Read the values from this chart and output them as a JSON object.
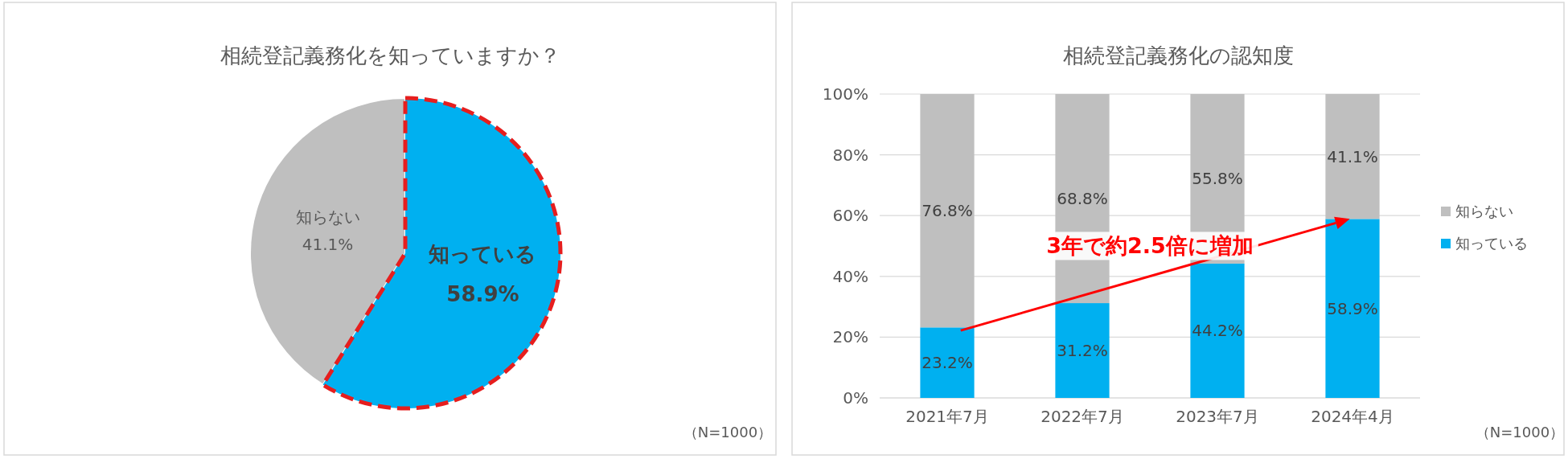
{
  "chart_data": [
    {
      "type": "pie",
      "title": "相続登記義務化を知っていますか？",
      "categories": [
        "知らない",
        "知っている"
      ],
      "values": [
        41.1,
        58.9
      ],
      "colors": [
        "#bfbfbf",
        "#00b0f0"
      ],
      "value_labels": [
        "41.1%",
        "58.9%"
      ],
      "legend": false,
      "annotations": [
        "（N=1000）"
      ]
    },
    {
      "type": "bar",
      "title": "相続登記義務化の認知度",
      "categories": [
        "2021年7月",
        "2022年7月",
        "2023年7月",
        "2024年4月"
      ],
      "stacked": true,
      "series": [
        {
          "name": "知っている",
          "color": "#00b0f0",
          "values": [
            23.2,
            31.2,
            44.2,
            58.9
          ],
          "value_labels": [
            "23.2%",
            "31.2%",
            "44.2%",
            "58.9%"
          ]
        },
        {
          "name": "知らない",
          "color": "#bfbfbf",
          "values": [
            76.8,
            68.8,
            55.8,
            41.1
          ],
          "value_labels": [
            "76.8%",
            "68.8%",
            "55.8%",
            "41.1%"
          ]
        }
      ],
      "ylim": [
        0,
        100
      ],
      "yticks": [
        {
          "value": 0,
          "label": "0%"
        },
        {
          "value": 20,
          "label": "20%"
        },
        {
          "value": 40,
          "label": "40%"
        },
        {
          "value": 60,
          "label": "60%"
        },
        {
          "value": 80,
          "label": "80%"
        },
        {
          "value": 100,
          "label": "100%"
        }
      ],
      "grid": "y",
      "legend": "right",
      "annotations": [
        "3年で約2.5倍に増加",
        "（N=1000）"
      ]
    }
  ]
}
